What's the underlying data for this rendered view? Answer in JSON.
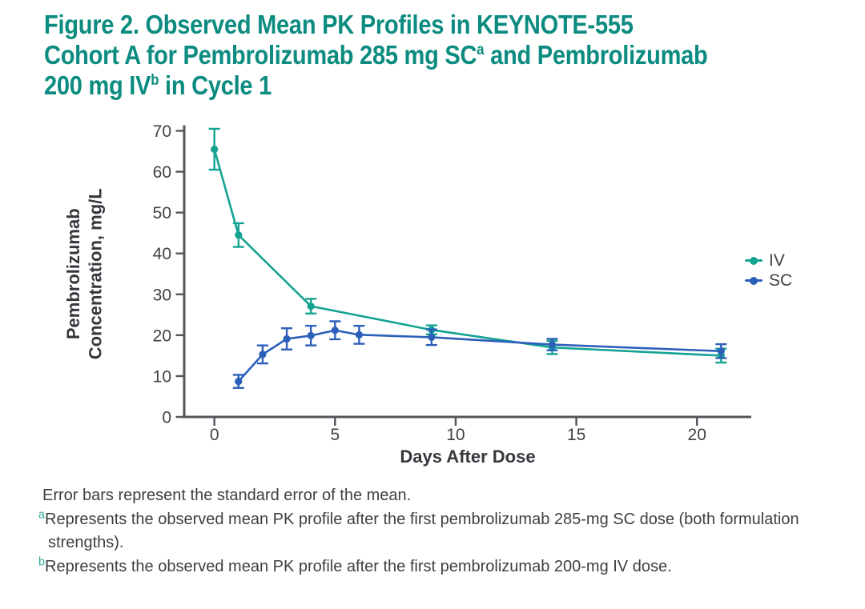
{
  "title": {
    "line1": "Figure 2. Observed Mean PK Profiles in KEYNOTE-555",
    "line2_pre": "Cohort A for Pembrolizumab 285 mg SC",
    "line2_sup": "a",
    "line2_post": " and Pembrolizumab",
    "line3_pre": "200 mg IV",
    "line3_sup": "b",
    "line3_post": " in Cycle 1"
  },
  "chart_data": {
    "type": "line",
    "title": "Observed mean PK profiles, Cycle 1",
    "xlabel": "Days After Dose",
    "ylabel": "Pembrolizumab Concentration, mg/L",
    "ylabel_lines": [
      "Pembrolizumab",
      "Concentration, mg/L"
    ],
    "xlim": [
      -1.25,
      22.25
    ],
    "ylim": [
      0,
      70
    ],
    "x_ticks": [
      0,
      5,
      10,
      15,
      20
    ],
    "y_ticks": [
      0,
      10,
      20,
      30,
      40,
      50,
      60,
      70
    ],
    "grid": false,
    "legend_position": "right",
    "error_bars": "standard error of the mean",
    "series": [
      {
        "name": "IV",
        "color": "#14A392",
        "x": [
          0,
          1,
          4,
          9,
          14,
          21
        ],
        "y": [
          65.5,
          44.5,
          27.1,
          21.3,
          17.0,
          15.0
        ],
        "se": [
          5.0,
          2.9,
          1.8,
          1.1,
          1.6,
          1.7
        ]
      },
      {
        "name": "SC",
        "color": "#2C5FBA",
        "x": [
          1,
          2,
          3,
          4,
          5,
          6,
          9,
          14,
          21
        ],
        "y": [
          8.7,
          15.3,
          19.1,
          19.9,
          21.2,
          20.1,
          19.5,
          17.7,
          16.1
        ],
        "se": [
          1.6,
          2.2,
          2.6,
          2.4,
          2.2,
          2.2,
          1.9,
          1.4,
          1.7
        ]
      }
    ]
  },
  "footnotes": {
    "note1": "Error bars represent the standard error of the mean.",
    "note2_sup": "a",
    "note2": "Represents the observed mean PK profile after the first pembrolizumab 285-mg SC dose (both formulation strengths).",
    "note3_sup": "b",
    "note3": "Represents the observed mean PK profile after the first pembrolizumab 200-mg IV dose."
  },
  "colors": {
    "title-teal": "#0C8C80",
    "sup-teal": "#2BA89B",
    "text-dark": "#3C3F44",
    "axis-gray": "#515459",
    "tick-label": "#3F4247",
    "iv-teal": "#14A392",
    "sc-blue": "#2C5FBA"
  }
}
